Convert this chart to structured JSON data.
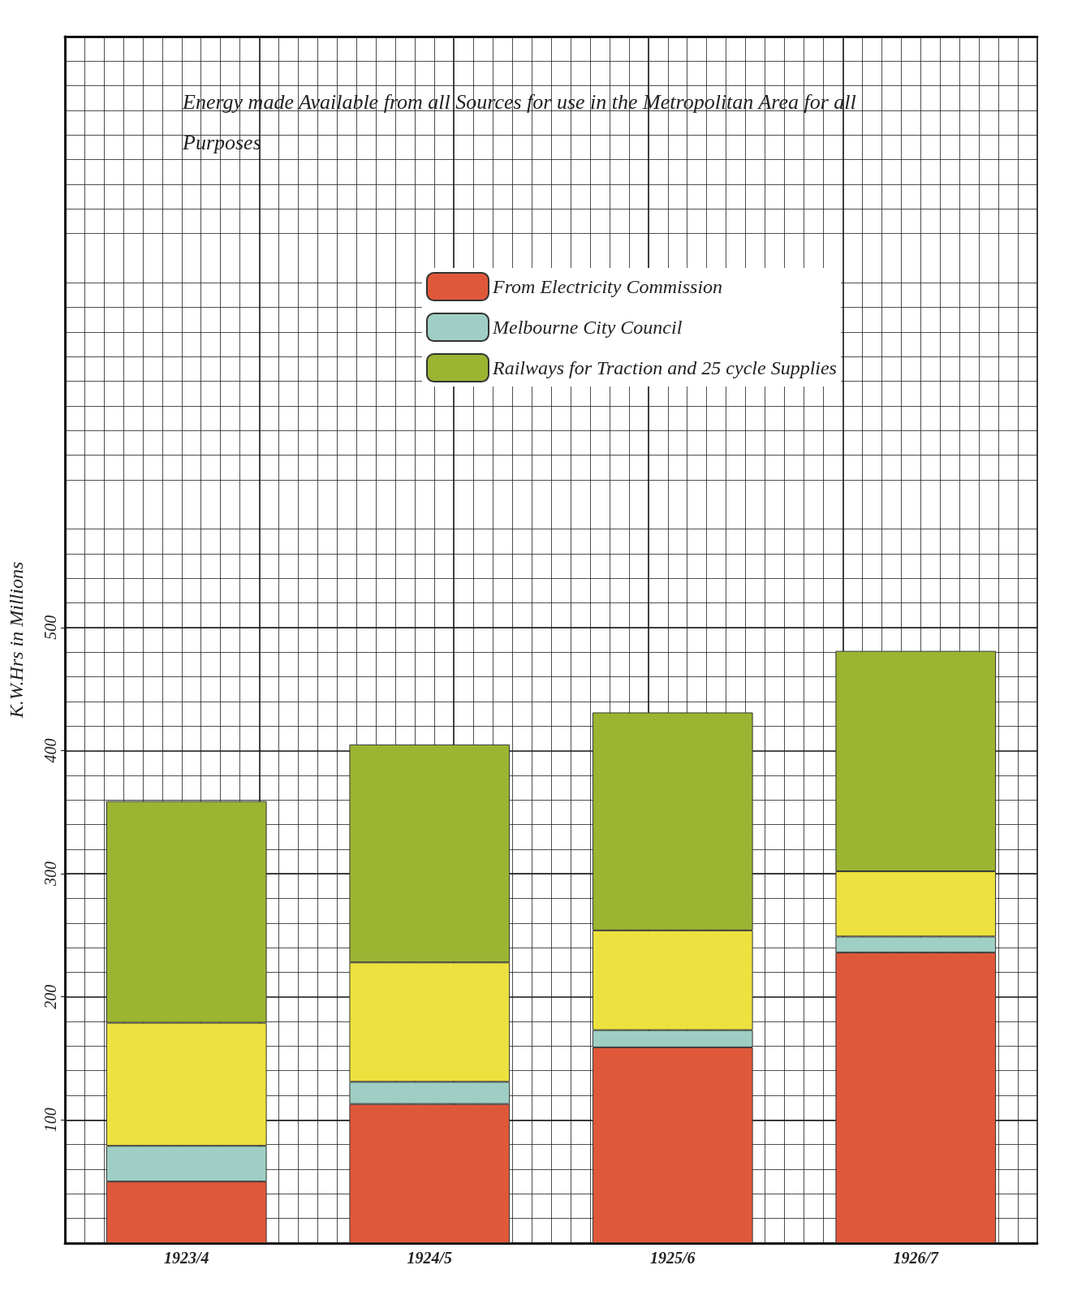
{
  "chart_data": {
    "type": "bar",
    "stacked": true,
    "title": "Energy made Available from all Sources for use in the Metropolitan Area for all Purposes",
    "ylabel": "K.W.Hrs in Millions",
    "categories": [
      "1923/4",
      "1924/5",
      "1925/6",
      "1926/7"
    ],
    "series": [
      {
        "name": "From Electricity Commission",
        "color": "#e0583a",
        "values": [
          50,
          113,
          159,
          236
        ]
      },
      {
        "name": "Melbourne City Council",
        "color": "#9fcfc4",
        "values": [
          29,
          18,
          14,
          13
        ]
      },
      {
        "color": "#ece13e",
        "values": [
          100,
          97,
          81,
          53
        ]
      },
      {
        "name": "Railways for Traction and 25 cycle Supplies",
        "color": "#9bb431",
        "values": [
          180,
          177,
          177,
          179
        ]
      }
    ],
    "ylim": [
      0,
      980
    ],
    "yticks": [
      100,
      200,
      300,
      400,
      500
    ],
    "grid": true,
    "legend": "top"
  }
}
